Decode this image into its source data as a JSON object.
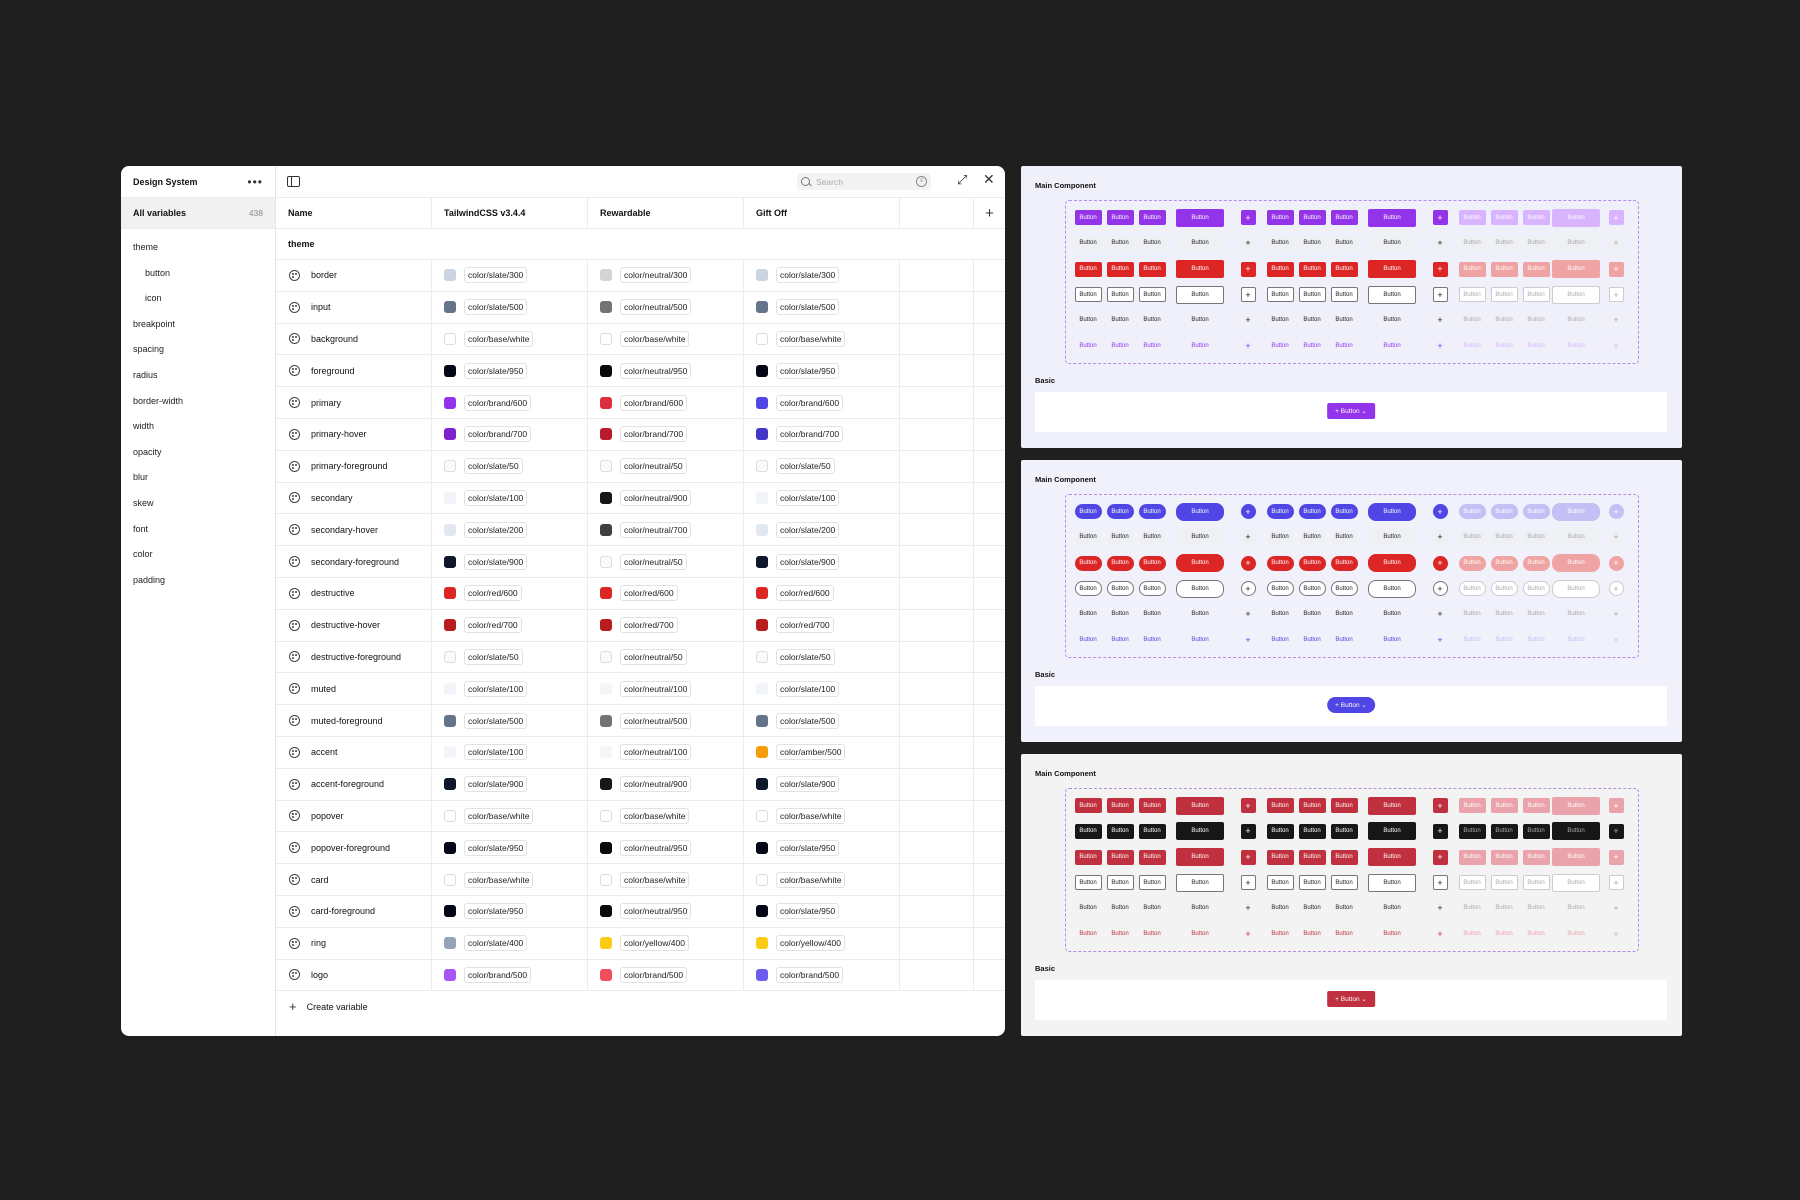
{
  "app": {
    "title": "Design System"
  },
  "sidebar": {
    "all_label": "All variables",
    "all_count": "438",
    "groups": [
      {
        "label": "theme",
        "sub": false
      },
      {
        "label": "button",
        "sub": true
      },
      {
        "label": "icon",
        "sub": true
      },
      {
        "label": "breakpoint",
        "sub": false
      },
      {
        "label": "spacing",
        "sub": false
      },
      {
        "label": "radius",
        "sub": false
      },
      {
        "label": "border-width",
        "sub": false
      },
      {
        "label": "width",
        "sub": false
      },
      {
        "label": "opacity",
        "sub": false
      },
      {
        "label": "blur",
        "sub": false
      },
      {
        "label": "skew",
        "sub": false
      },
      {
        "label": "font",
        "sub": false
      },
      {
        "label": "color",
        "sub": false
      },
      {
        "label": "padding",
        "sub": false
      }
    ]
  },
  "toolbar": {
    "search_placeholder": "Search",
    "filter_icon": "filter-icon",
    "expand_icon": "expand-icon",
    "close_icon": "close-icon"
  },
  "table": {
    "columns": [
      "Name",
      "TailwindCSS v3.4.4",
      "Rewardable",
      "Gift Off"
    ],
    "group_label": "theme",
    "create_label": "Create variable",
    "rows": [
      {
        "name": "border",
        "v": [
          [
            "color/slate/300",
            "#cbd5e1"
          ],
          [
            "color/neutral/300",
            "#d4d4d4"
          ],
          [
            "color/slate/300",
            "#cbd5e1"
          ]
        ]
      },
      {
        "name": "input",
        "v": [
          [
            "color/slate/500",
            "#64748b"
          ],
          [
            "color/neutral/500",
            "#737373"
          ],
          [
            "color/slate/500",
            "#64748b"
          ]
        ]
      },
      {
        "name": "background",
        "v": [
          [
            "color/base/white",
            "#ffffff"
          ],
          [
            "color/base/white",
            "#ffffff"
          ],
          [
            "color/base/white",
            "#ffffff"
          ]
        ]
      },
      {
        "name": "foreground",
        "v": [
          [
            "color/slate/950",
            "#020617"
          ],
          [
            "color/neutral/950",
            "#0a0a0a"
          ],
          [
            "color/slate/950",
            "#020617"
          ]
        ]
      },
      {
        "name": "primary",
        "v": [
          [
            "color/brand/600",
            "#9333ea"
          ],
          [
            "color/brand/600",
            "#dc2f3f"
          ],
          [
            "color/brand/600",
            "#4f46e5"
          ]
        ]
      },
      {
        "name": "primary-hover",
        "v": [
          [
            "color/brand/700",
            "#7e22ce"
          ],
          [
            "color/brand/700",
            "#b91c2c"
          ],
          [
            "color/brand/700",
            "#4338ca"
          ]
        ]
      },
      {
        "name": "primary-foreground",
        "v": [
          [
            "color/slate/50",
            "#f8fafc"
          ],
          [
            "color/neutral/50",
            "#fafafa"
          ],
          [
            "color/slate/50",
            "#f8fafc"
          ]
        ]
      },
      {
        "name": "secondary",
        "v": [
          [
            "color/slate/100",
            "#f1f5f9"
          ],
          [
            "color/neutral/900",
            "#171717"
          ],
          [
            "color/slate/100",
            "#f1f5f9"
          ]
        ]
      },
      {
        "name": "secondary-hover",
        "v": [
          [
            "color/slate/200",
            "#e2e8f0"
          ],
          [
            "color/neutral/700",
            "#404040"
          ],
          [
            "color/slate/200",
            "#e2e8f0"
          ]
        ]
      },
      {
        "name": "secondary-foreground",
        "v": [
          [
            "color/slate/900",
            "#0f172a"
          ],
          [
            "color/neutral/50",
            "#fafafa"
          ],
          [
            "color/slate/900",
            "#0f172a"
          ]
        ]
      },
      {
        "name": "destructive",
        "v": [
          [
            "color/red/600",
            "#dc2626"
          ],
          [
            "color/red/600",
            "#dc2626"
          ],
          [
            "color/red/600",
            "#dc2626"
          ]
        ]
      },
      {
        "name": "destructive-hover",
        "v": [
          [
            "color/red/700",
            "#b91c1c"
          ],
          [
            "color/red/700",
            "#b91c1c"
          ],
          [
            "color/red/700",
            "#b91c1c"
          ]
        ]
      },
      {
        "name": "destructive-foreground",
        "v": [
          [
            "color/slate/50",
            "#f8fafc"
          ],
          [
            "color/neutral/50",
            "#fafafa"
          ],
          [
            "color/slate/50",
            "#f8fafc"
          ]
        ]
      },
      {
        "name": "muted",
        "v": [
          [
            "color/slate/100",
            "#f1f5f9"
          ],
          [
            "color/neutral/100",
            "#f5f5f5"
          ],
          [
            "color/slate/100",
            "#f1f5f9"
          ]
        ]
      },
      {
        "name": "muted-foreground",
        "v": [
          [
            "color/slate/500",
            "#64748b"
          ],
          [
            "color/neutral/500",
            "#737373"
          ],
          [
            "color/slate/500",
            "#64748b"
          ]
        ]
      },
      {
        "name": "accent",
        "v": [
          [
            "color/slate/100",
            "#f1f5f9"
          ],
          [
            "color/neutral/100",
            "#f5f5f5"
          ],
          [
            "color/amber/500",
            "#f59e0b"
          ]
        ]
      },
      {
        "name": "accent-foreground",
        "v": [
          [
            "color/slate/900",
            "#0f172a"
          ],
          [
            "color/neutral/900",
            "#171717"
          ],
          [
            "color/slate/900",
            "#0f172a"
          ]
        ]
      },
      {
        "name": "popover",
        "v": [
          [
            "color/base/white",
            "#ffffff"
          ],
          [
            "color/base/white",
            "#ffffff"
          ],
          [
            "color/base/white",
            "#ffffff"
          ]
        ]
      },
      {
        "name": "popover-foreground",
        "v": [
          [
            "color/slate/950",
            "#020617"
          ],
          [
            "color/neutral/950",
            "#0a0a0a"
          ],
          [
            "color/slate/950",
            "#020617"
          ]
        ]
      },
      {
        "name": "card",
        "v": [
          [
            "color/base/white",
            "#ffffff"
          ],
          [
            "color/base/white",
            "#ffffff"
          ],
          [
            "color/base/white",
            "#ffffff"
          ]
        ]
      },
      {
        "name": "card-foreground",
        "v": [
          [
            "color/slate/950",
            "#020617"
          ],
          [
            "color/neutral/950",
            "#0a0a0a"
          ],
          [
            "color/slate/950",
            "#020617"
          ]
        ]
      },
      {
        "name": "ring",
        "v": [
          [
            "color/slate/400",
            "#94a3b8"
          ],
          [
            "color/yellow/400",
            "#facc15"
          ],
          [
            "color/yellow/400",
            "#facc15"
          ]
        ]
      },
      {
        "name": "logo",
        "v": [
          [
            "color/brand/500",
            "#a855f7"
          ],
          [
            "color/brand/500",
            "#ef4f5c"
          ],
          [
            "color/brand/500",
            "#6d5cf0"
          ]
        ]
      }
    ]
  },
  "panels": [
    {
      "main_label": "Main Component",
      "basic_label": "Basic",
      "basic_button": "+ Button ⌄",
      "bg": "#f0f0fa",
      "primary": "#9333ea",
      "light": "#d8b4fe",
      "destructive": "#dc2626",
      "light_destructive": "#f0a3a3",
      "secondary": "#eef0f4",
      "link": "#9333ea",
      "secondary_text": "#222222",
      "radius": "2px"
    },
    {
      "main_label": "Main Component",
      "basic_label": "Basic",
      "basic_button": "+ Button ⌄",
      "bg": "#f0f1fa",
      "primary": "#4f46e5",
      "light": "#c4bff5",
      "destructive": "#dc2626",
      "light_destructive": "#f0a3a3",
      "secondary": "#eef0f4",
      "link": "#4f46e5",
      "secondary_text": "#222222",
      "radius": "8px"
    },
    {
      "main_label": "Main Component",
      "basic_label": "Basic",
      "basic_button": "+ Button ⌄",
      "bg": "#f3f3f3",
      "primary": "#c0303e",
      "light": "#eaa2ab",
      "destructive": "#c0303e",
      "light_destructive": "#eaa2ab",
      "secondary": "#171717",
      "link": "#c0303e",
      "secondary_text": "#ffffff",
      "radius": "2px"
    }
  ],
  "button_label": "Button",
  "plus_glyph": "+"
}
